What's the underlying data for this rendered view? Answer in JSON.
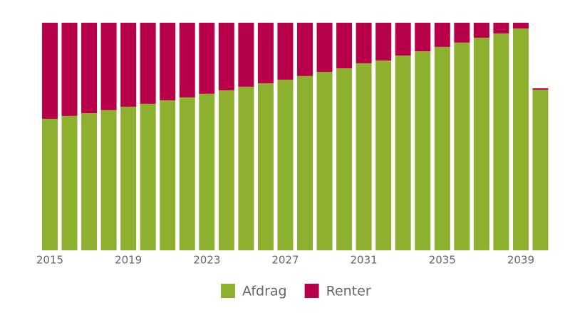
{
  "chart_data": {
    "type": "stacked-bar",
    "categories": [
      2015,
      null,
      null,
      null,
      2019,
      null,
      null,
      null,
      2023,
      null,
      null,
      null,
      2027,
      null,
      null,
      null,
      2031,
      null,
      null,
      null,
      2035,
      null,
      null,
      null,
      2039,
      null
    ],
    "series": [
      {
        "name": "Afdrag",
        "color": "#8db02e",
        "values": [
          57.8,
          59.1,
          60.3,
          61.6,
          63.1,
          64.4,
          65.9,
          67.2,
          68.8,
          70.3,
          71.9,
          73.4,
          75.0,
          76.6,
          78.4,
          80.0,
          82.2,
          83.4,
          85.6,
          87.5,
          89.4,
          91.3,
          93.4,
          95.3,
          97.5,
          70.6
        ]
      },
      {
        "name": "Renter",
        "color": "#b8004a",
        "values": [
          42.2,
          40.9,
          39.7,
          38.4,
          36.9,
          35.6,
          34.1,
          32.8,
          31.2,
          29.7,
          28.1,
          26.6,
          25.0,
          23.4,
          21.6,
          20.0,
          17.8,
          16.6,
          14.4,
          12.5,
          10.6,
          8.7,
          6.6,
          4.7,
          2.5,
          0.6
        ]
      }
    ],
    "ylim": [
      0,
      100
    ],
    "legend": "bottom"
  }
}
